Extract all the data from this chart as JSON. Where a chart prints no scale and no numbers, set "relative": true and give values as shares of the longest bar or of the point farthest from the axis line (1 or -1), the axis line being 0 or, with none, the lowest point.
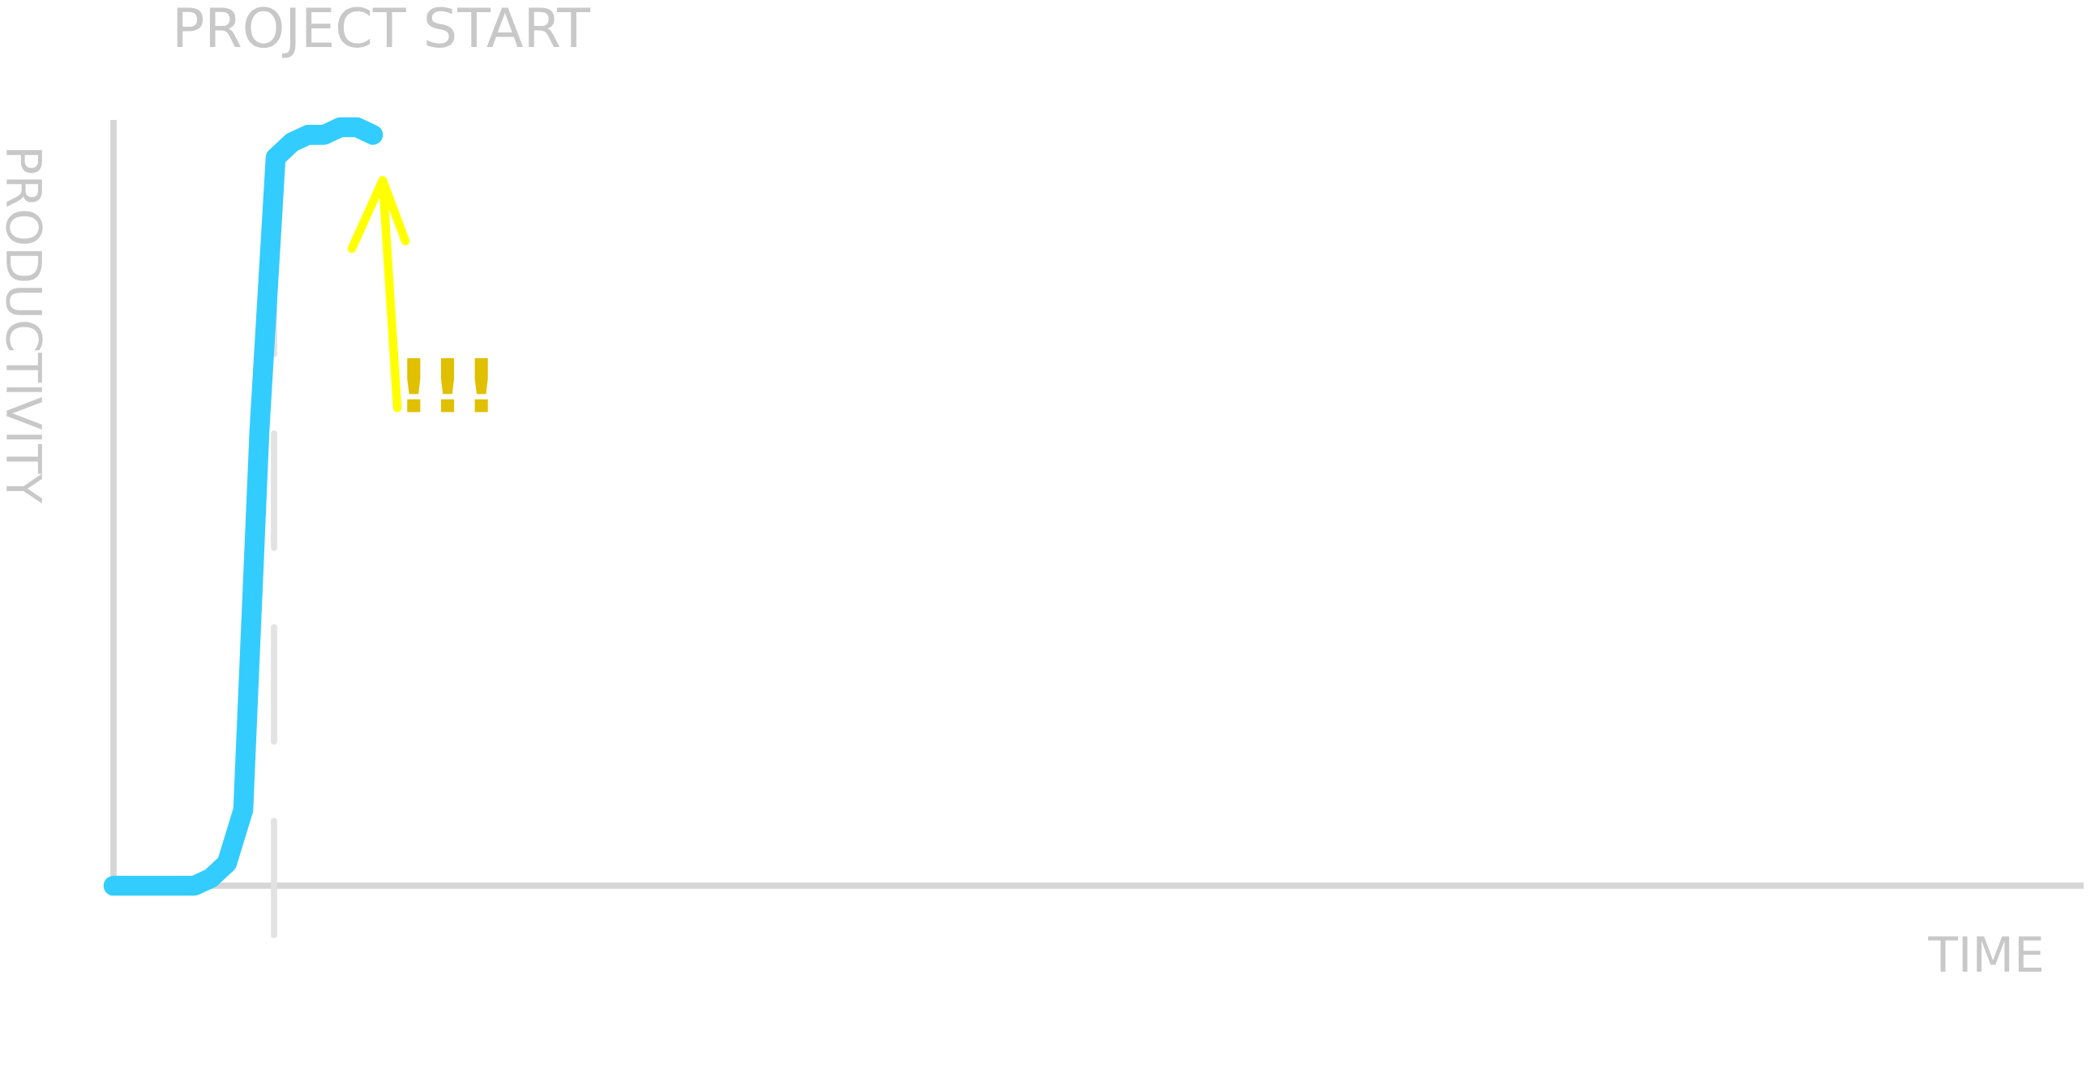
{
  "chart_data": {
    "type": "line",
    "relative": true,
    "xlabel": "TIME",
    "ylabel": "PRODUCTIVITY",
    "categories": [
      null,
      null,
      null,
      null,
      null,
      null,
      null,
      null,
      null,
      null,
      null,
      null,
      null,
      null,
      null,
      null,
      null,
      null,
      null,
      null,
      null,
      null,
      null,
      null,
      null,
      null,
      null,
      null,
      null,
      null,
      null,
      null,
      null,
      null,
      null,
      null,
      null,
      null,
      null,
      null,
      null,
      null,
      null,
      null,
      null,
      null,
      null,
      null,
      null,
      null,
      null,
      null,
      null,
      null,
      null,
      null,
      null,
      null,
      null,
      null,
      null,
      null,
      null,
      null,
      null,
      null,
      null,
      null,
      null,
      null,
      null,
      null,
      null,
      null,
      null,
      null,
      null,
      null,
      null,
      null,
      null,
      null,
      null,
      null,
      null,
      null,
      null,
      null,
      null,
      null,
      null,
      null,
      null,
      null,
      null,
      null,
      null,
      null,
      null,
      null,
      null,
      null,
      null,
      null,
      null,
      null,
      null,
      null,
      null,
      null,
      null,
      null,
      null,
      null,
      null,
      null,
      null,
      null,
      null,
      null,
      null,
      null
    ],
    "values": [
      0,
      0,
      0,
      0,
      0,
      0,
      0.01,
      0.03,
      0.1,
      0.6,
      0.96,
      0.98,
      0.99,
      0.99,
      1,
      1,
      0.99,
      null,
      null,
      null,
      null,
      null,
      null,
      null,
      null,
      null,
      null,
      null,
      null,
      null,
      null,
      null,
      null,
      null,
      null,
      null,
      null,
      null,
      null,
      null,
      null,
      null,
      null,
      null,
      null,
      null,
      null,
      null,
      null,
      null,
      null,
      null,
      null,
      null,
      null,
      null,
      null,
      null,
      null,
      null,
      null,
      null,
      null,
      null,
      null,
      null,
      null,
      null,
      null,
      null,
      null,
      null,
      null,
      null,
      null,
      null,
      null,
      null,
      null,
      null,
      null,
      null,
      null,
      null,
      null,
      null,
      null,
      null,
      null,
      null,
      null,
      null,
      null,
      null,
      null,
      null,
      null,
      null,
      null,
      null,
      null,
      null,
      null,
      null,
      null,
      null,
      null,
      null,
      null,
      null,
      null,
      null,
      null,
      null,
      null,
      null,
      null,
      null,
      null,
      null,
      null,
      null
    ],
    "color": "#33ccff",
    "line_style": "solid",
    "annotations": [
      "PROJECT START",
      "!!!"
    ]
  }
}
